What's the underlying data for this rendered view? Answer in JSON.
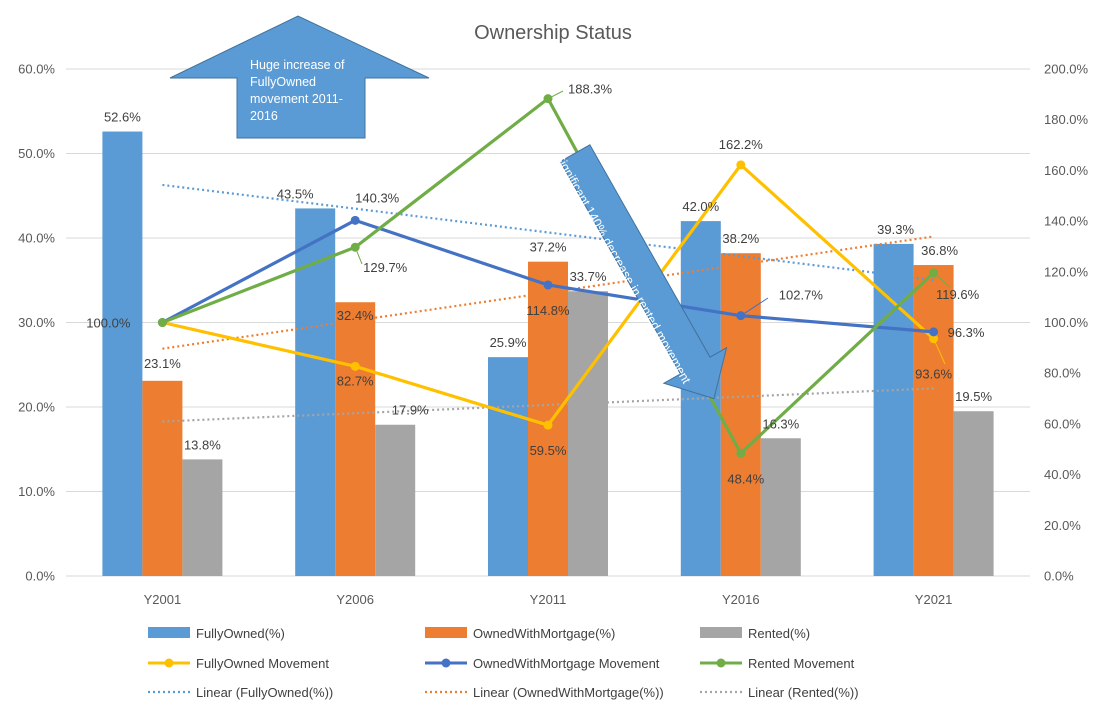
{
  "chart_data": {
    "type": "bar",
    "title": "Ownership Status",
    "categories": [
      "Y2001",
      "Y2006",
      "Y2011",
      "Y2016",
      "Y2021"
    ],
    "y_left": {
      "min": 0,
      "max": 60,
      "step": 10,
      "ticks": [
        "0.0%",
        "10.0%",
        "20.0%",
        "30.0%",
        "40.0%",
        "50.0%",
        "60.0%"
      ]
    },
    "y_right": {
      "min": 0,
      "max": 200,
      "step": 20,
      "ticks": [
        "0.0%",
        "20.0%",
        "40.0%",
        "60.0%",
        "80.0%",
        "100.0%",
        "120.0%",
        "140.0%",
        "160.0%",
        "180.0%",
        "200.0%"
      ]
    },
    "grid": true,
    "legend_position": "bottom",
    "bar_series": [
      {
        "name": "FullyOwned(%)",
        "color": "#5B9BD5",
        "values": [
          52.6,
          43.5,
          25.9,
          42.0,
          39.3
        ],
        "labels": [
          "52.6%",
          "43.5%",
          "25.9%",
          "42.0%",
          "39.3%"
        ]
      },
      {
        "name": "OwnedWithMortgage(%)",
        "color": "#ED7D31",
        "values": [
          23.1,
          32.4,
          37.2,
          38.2,
          36.8
        ],
        "labels": [
          "23.1%",
          "32.4%",
          "37.2%",
          "38.2%",
          "36.8%"
        ]
      },
      {
        "name": "Rented(%)",
        "color": "#A5A5A5",
        "values": [
          13.8,
          17.9,
          33.7,
          16.3,
          19.5
        ],
        "labels": [
          "13.8%",
          "17.9%",
          "33.7%",
          "16.3%",
          "19.5%"
        ]
      }
    ],
    "line_series": [
      {
        "name": "FullyOwned Movement",
        "color": "#FFC000",
        "axis": "right",
        "values": [
          100.0,
          82.7,
          59.5,
          162.2,
          93.6
        ],
        "labels": [
          "100.0%",
          "82.7%",
          "59.5%",
          "162.2%",
          "93.6%"
        ]
      },
      {
        "name": "OwnedWithMortgage Movement",
        "color": "#4472C4",
        "axis": "right",
        "values": [
          100.0,
          140.3,
          114.8,
          102.7,
          96.3
        ],
        "labels": [
          "",
          "140.3%",
          "114.8%",
          "102.7%",
          "96.3%"
        ]
      },
      {
        "name": "Rented Movement",
        "color": "#70AD47",
        "axis": "right",
        "values": [
          100.0,
          129.7,
          188.3,
          48.4,
          119.6
        ],
        "labels": [
          "",
          "129.7%",
          "188.3%",
          "48.4%",
          "119.6%"
        ]
      }
    ],
    "trendlines": [
      {
        "name": "Linear (FullyOwned(%))",
        "color": "#5B9BD5",
        "of": "FullyOwned(%)"
      },
      {
        "name": "Linear (OwnedWithMortgage(%))",
        "color": "#ED7D31",
        "of": "OwnedWithMortgage(%)"
      },
      {
        "name": "Linear (Rented(%))",
        "color": "#A5A5A5",
        "of": "Rented(%)"
      }
    ],
    "annotations": [
      {
        "id": "up-arrow",
        "text_lines": [
          "Huge increase of",
          "FullyOwned",
          "movement 2011-",
          "2016"
        ],
        "color": "#5B9BD5"
      },
      {
        "id": "down-arrow",
        "text": "Significant 140% decrease in rented movement",
        "color": "#5B9BD5"
      }
    ]
  }
}
